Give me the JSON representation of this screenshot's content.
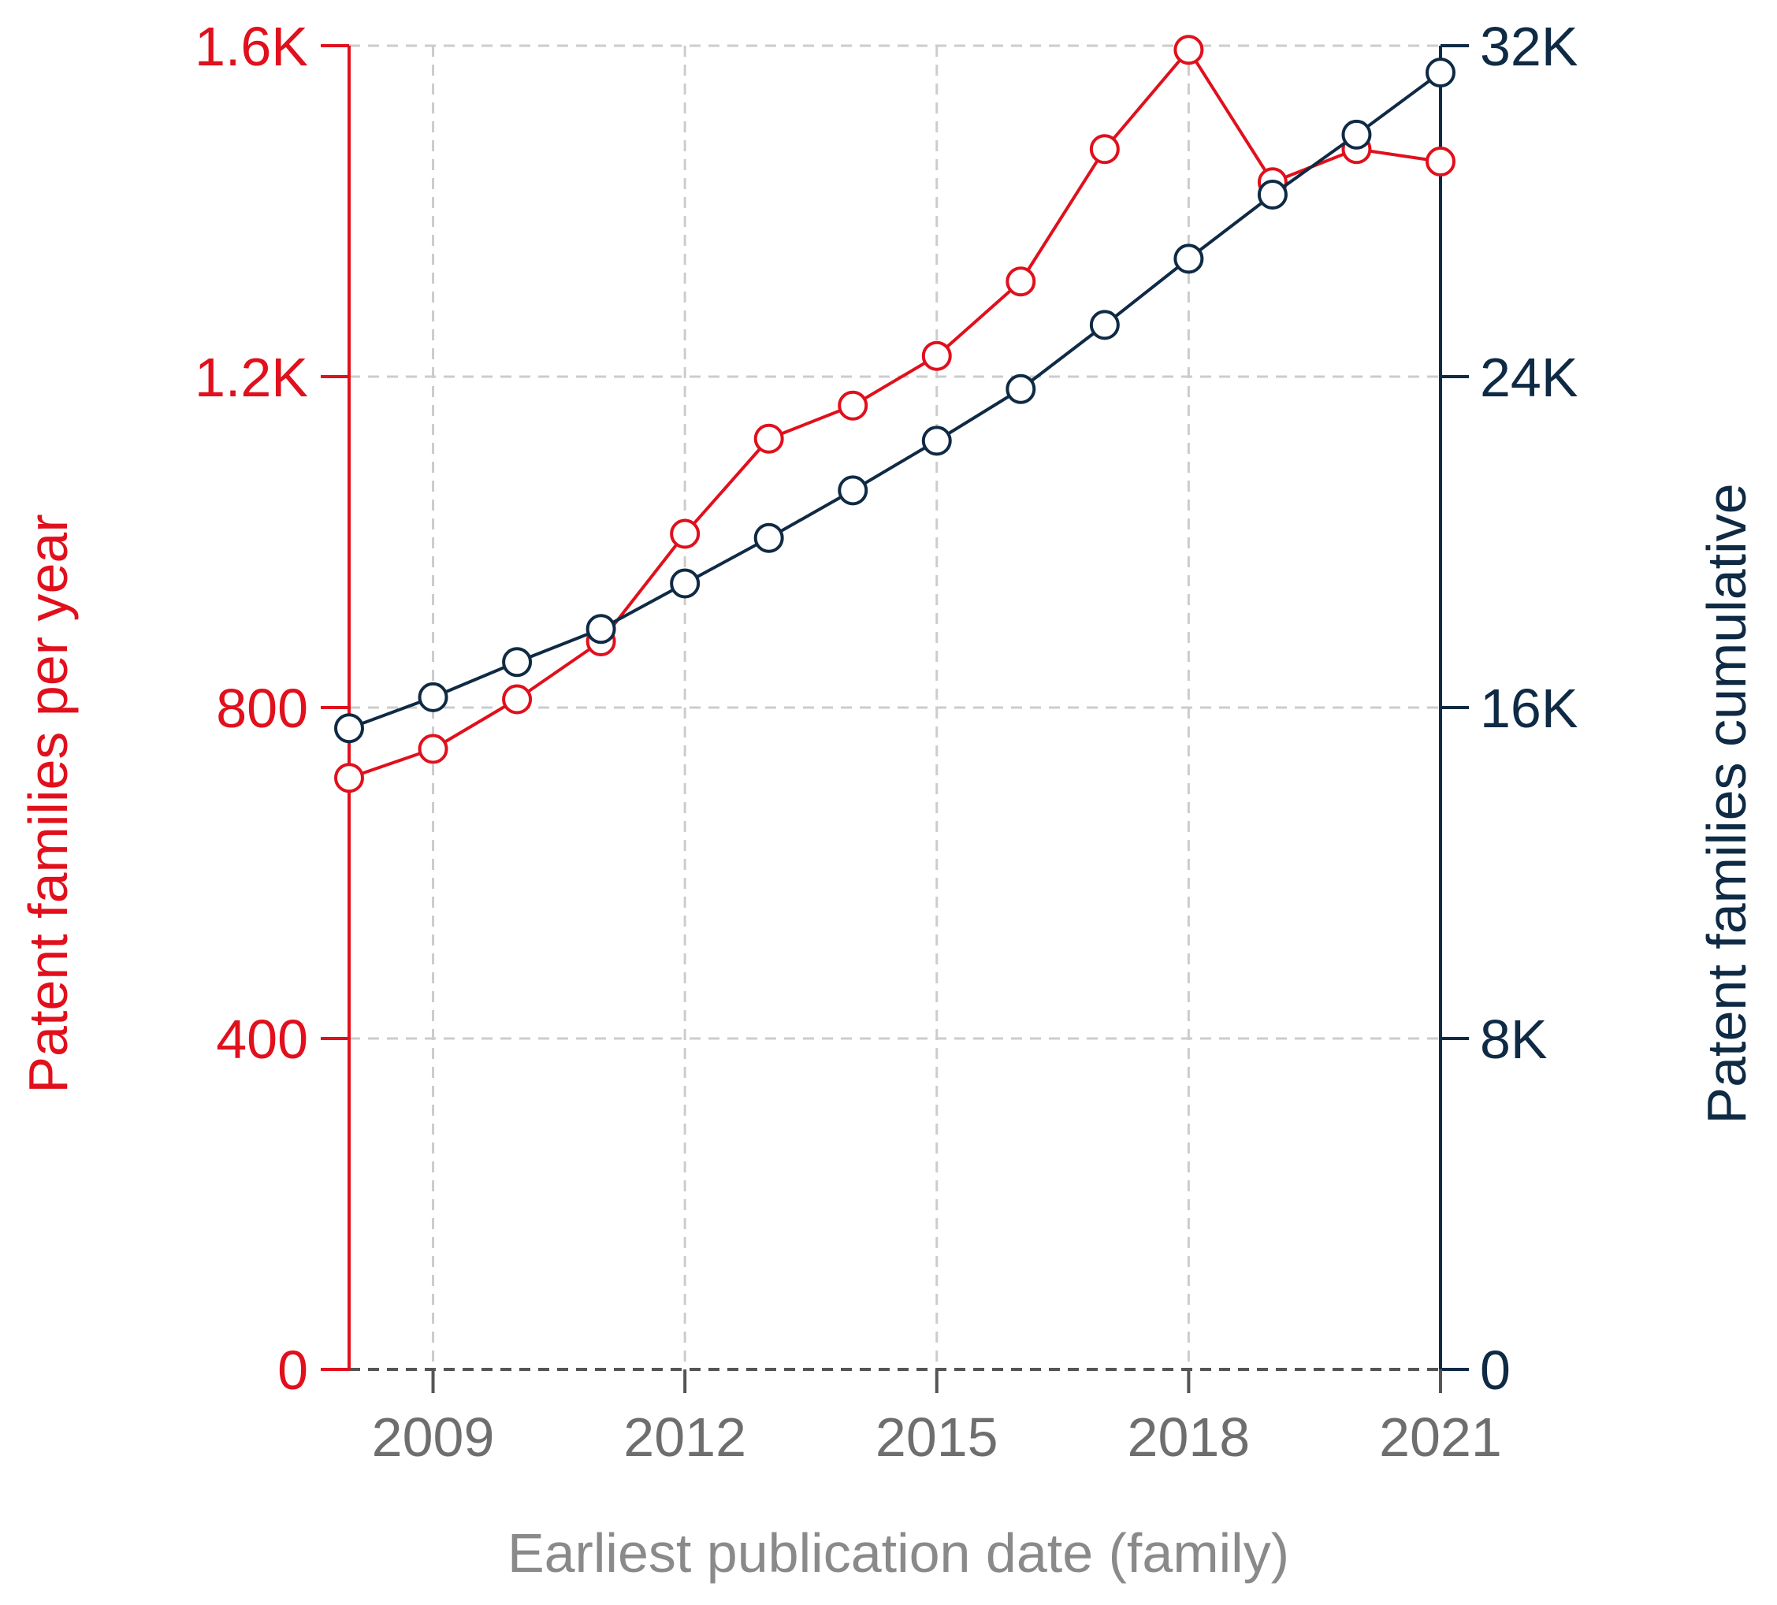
{
  "colors": {
    "primary": "#e0101c",
    "secondary": "#0f2a44",
    "xaxis_text": "#6e6e6e",
    "xaxis_title": "#8a8a8a",
    "grid": "#cccccc",
    "baseline": "#555555"
  },
  "chart_data": {
    "type": "line",
    "x": [
      2008,
      2009,
      2010,
      2011,
      2012,
      2013,
      2014,
      2015,
      2016,
      2017,
      2018,
      2019,
      2020,
      2021
    ],
    "xlabel": "Earliest publication date (family)",
    "x_ticks": [
      2009,
      2012,
      2015,
      2018,
      2021
    ],
    "x_tick_labels": [
      "2009",
      "2012",
      "2015",
      "2018",
      "2021"
    ],
    "xlim": [
      2008,
      2021
    ],
    "grid": true,
    "series": [
      {
        "name": "Patent families per year",
        "axis": "left",
        "color": "#e0101c",
        "values": [
          715,
          750,
          810,
          880,
          1010,
          1125,
          1165,
          1225,
          1315,
          1475,
          1595,
          1435,
          1475,
          1460
        ]
      },
      {
        "name": "Patent families cumulative",
        "axis": "right",
        "color": "#0f2a44",
        "values": [
          15500,
          16250,
          17100,
          17900,
          19000,
          20100,
          21250,
          22450,
          23700,
          25250,
          26850,
          28400,
          29850,
          31350
        ]
      }
    ],
    "y_left": {
      "label": "Patent families per year",
      "range": [
        0,
        1600
      ],
      "ticks": [
        0,
        400,
        800,
        1200,
        1600
      ],
      "tick_labels": [
        "0",
        "400",
        "800",
        "1.2K",
        "1.6K"
      ]
    },
    "y_right": {
      "label": "Patent families cumulative",
      "range": [
        0,
        32000
      ],
      "ticks": [
        0,
        8000,
        16000,
        24000,
        32000
      ],
      "tick_labels": [
        "0",
        "8K",
        "16K",
        "24K",
        "32K"
      ]
    }
  }
}
